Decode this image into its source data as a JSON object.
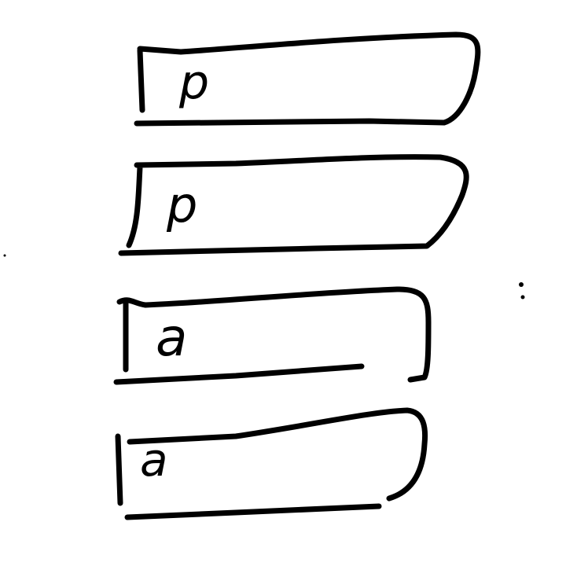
{
  "diagram": {
    "background_color": "#ffffff",
    "stroke_color": "#000000",
    "boxes": [
      {
        "label": "p"
      },
      {
        "label": "p"
      },
      {
        "label": "a"
      },
      {
        "label": "a"
      }
    ]
  }
}
